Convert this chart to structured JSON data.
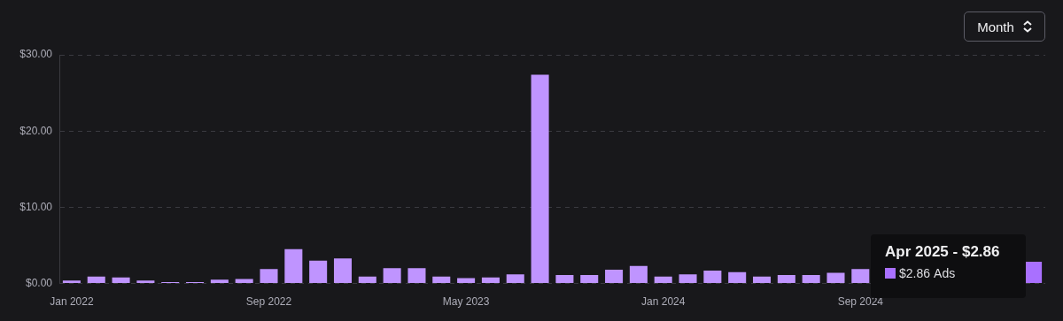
{
  "chart_data": {
    "type": "bar",
    "categories": [
      "Jan 2022",
      null,
      null,
      null,
      null,
      null,
      null,
      null,
      "Sep 2022",
      null,
      null,
      null,
      null,
      null,
      null,
      null,
      "May 2023",
      null,
      null,
      null,
      null,
      null,
      null,
      null,
      "Jan 2024",
      null,
      null,
      null,
      null,
      null,
      null,
      null,
      "Sep 2024",
      null,
      null,
      null,
      null,
      null,
      null,
      null
    ],
    "series": [
      {
        "name": "Ads",
        "colors": [
          "#bf94ff",
          "#bf94ff",
          "#bf94ff",
          "#bf94ff",
          "#bf94ff",
          "#bf94ff",
          "#bf94ff",
          "#bf94ff",
          "#bf94ff",
          "#bf94ff",
          "#bf94ff",
          "#bf94ff",
          "#bf94ff",
          "#bf94ff",
          "#bf94ff",
          "#bf94ff",
          "#bf94ff",
          "#bf94ff",
          "#bf94ff",
          "#bf94ff",
          "#bf94ff",
          "#bf94ff",
          "#bf94ff",
          "#bf94ff",
          "#bf94ff",
          "#bf94ff",
          "#bf94ff",
          "#bf94ff",
          "#bf94ff",
          "#bf94ff",
          "#bf94ff",
          "#bf94ff",
          "#bf94ff",
          "#bf94ff",
          "#bf94ff",
          "#bf94ff",
          "#bf94ff",
          "#bf94ff",
          "#bf94ff",
          "#a970ff"
        ],
        "values": [
          0.4,
          0.9,
          0.8,
          0.4,
          0.2,
          0.2,
          0.5,
          0.6,
          1.9,
          4.5,
          3.0,
          3.3,
          0.9,
          2.0,
          2.0,
          0.9,
          0.7,
          0.8,
          1.2,
          27.4,
          1.1,
          1.1,
          1.8,
          2.3,
          0.9,
          1.2,
          1.7,
          1.5,
          0.9,
          1.1,
          1.1,
          1.4,
          1.9,
          null,
          null,
          null,
          null,
          null,
          null,
          2.86
        ]
      }
    ],
    "ylim": [
      0,
      30
    ],
    "yticks": [
      {
        "value": 0,
        "label": "$0.00"
      },
      {
        "value": 10,
        "label": "$10.00"
      },
      {
        "value": 20,
        "label": "$20.00"
      },
      {
        "value": 30,
        "label": "$30.00"
      }
    ],
    "grid": "y",
    "annotations": [
      "Month",
      "Apr 2025 - $2.86",
      "$2.86"
    ]
  }
}
